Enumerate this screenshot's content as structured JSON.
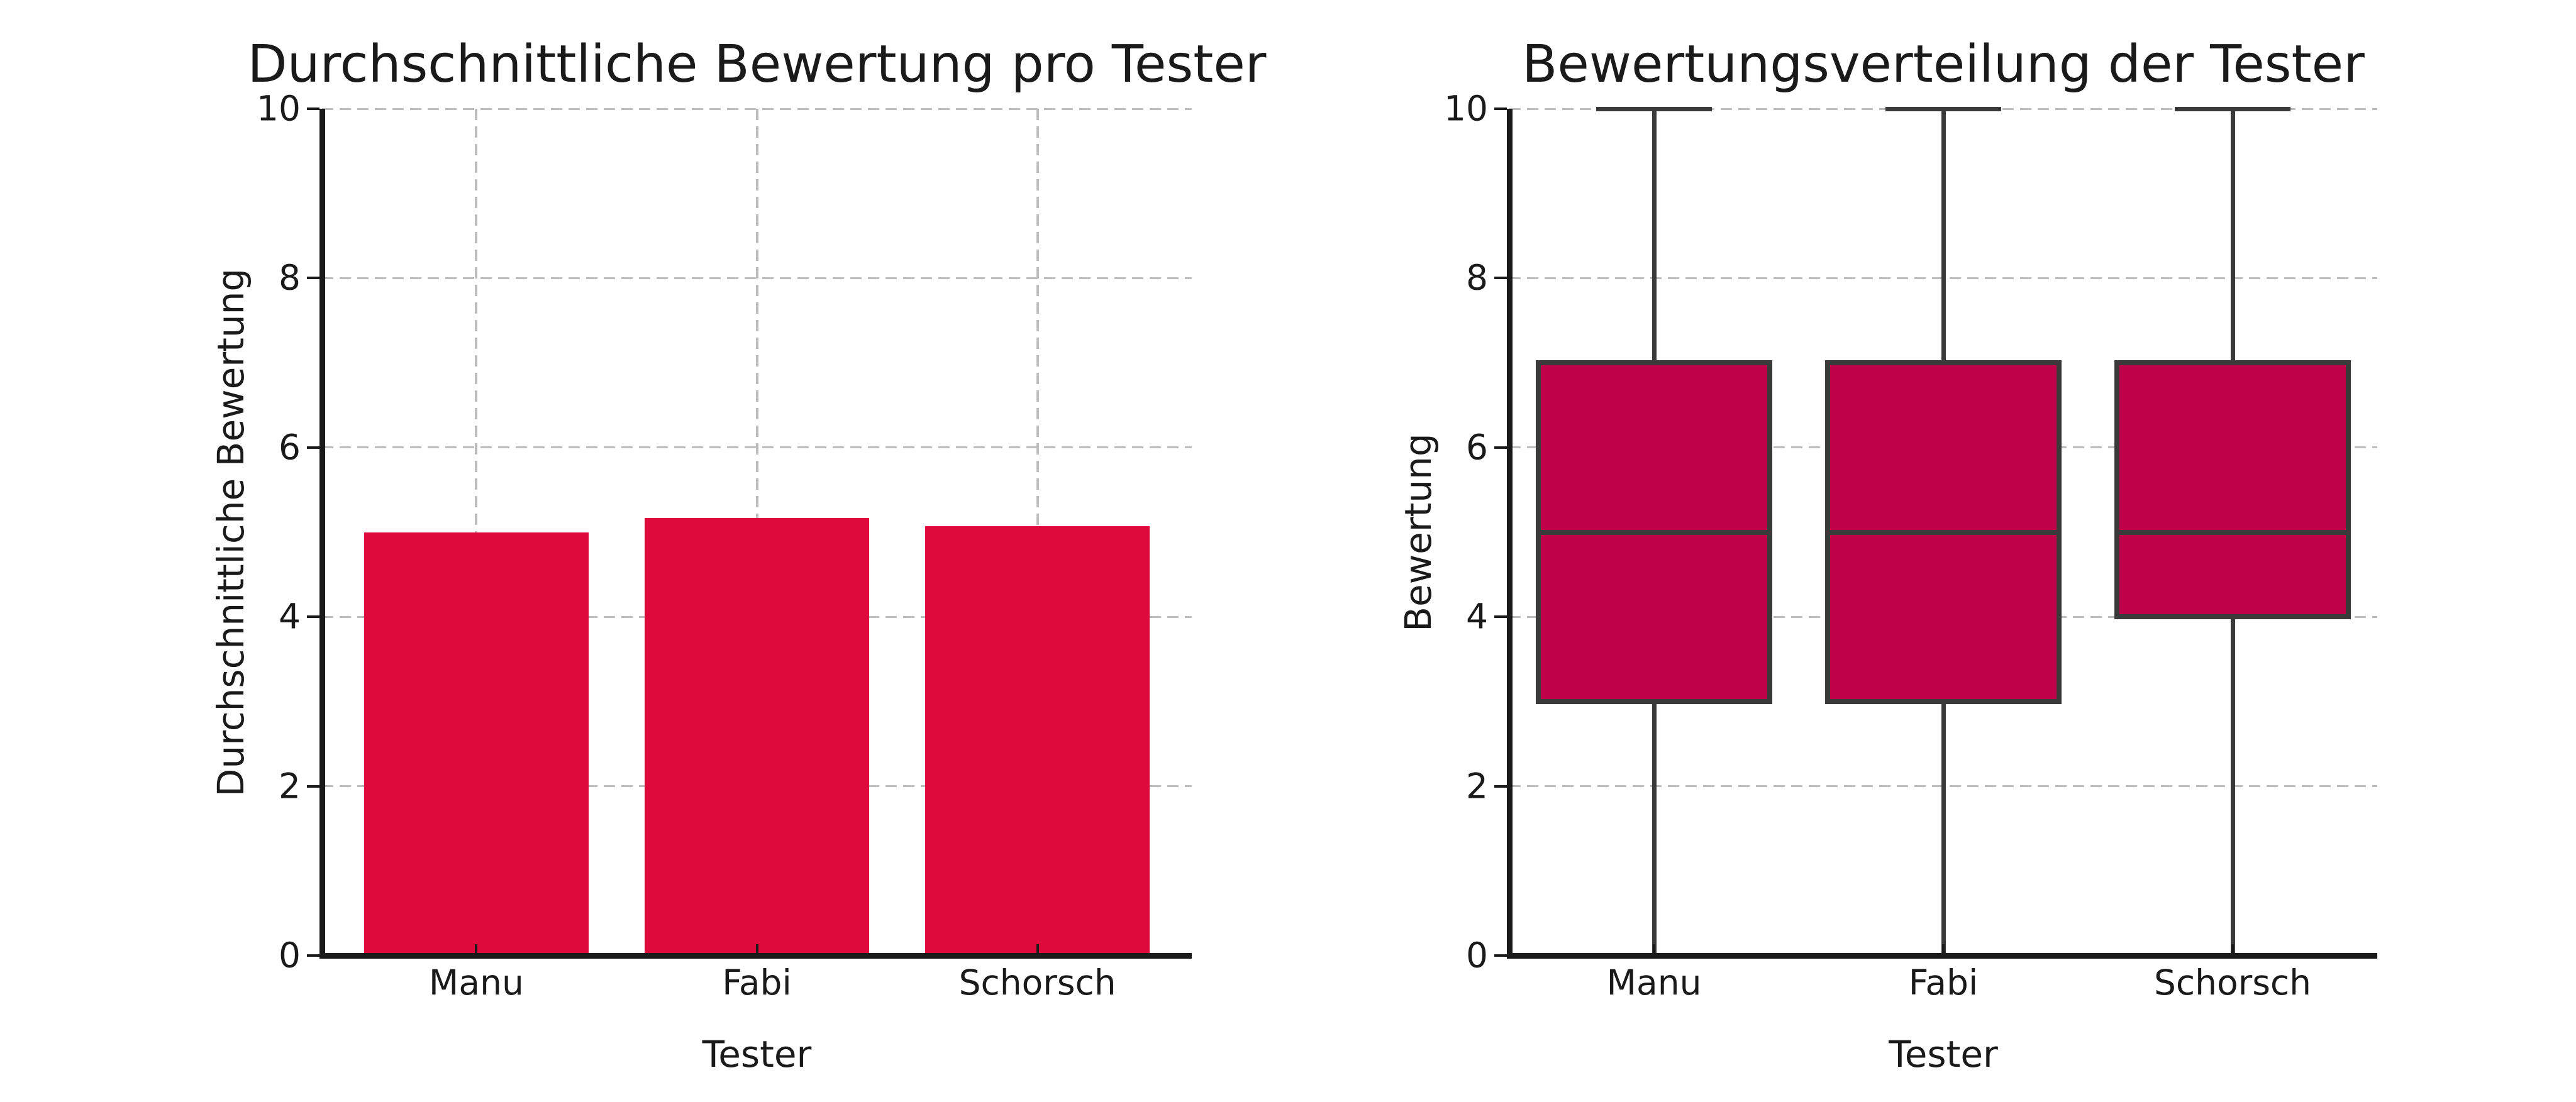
{
  "figure": {
    "background": "#ffffff",
    "text_color": "#1a1a1a",
    "grid_color": "#bdbdbd",
    "grid_style": "dashed"
  },
  "chart_data": [
    {
      "type": "bar",
      "title": "Durchschnittliche Bewertung pro Tester",
      "xlabel": "Tester",
      "ylabel": "Durchschnittliche Bewertung",
      "categories": [
        "Manu",
        "Fabi",
        "Schorsch"
      ],
      "values": [
        5.0,
        5.17,
        5.07
      ],
      "ylim": [
        0,
        10
      ],
      "yticks": [
        0,
        2,
        4,
        6,
        8,
        10
      ],
      "grid": "dashed, both axes, drawn above bars",
      "legend": "none",
      "bar_color": "#df0a3c",
      "axis_color": "#1a1a1a"
    },
    {
      "type": "boxplot",
      "title": "Bewertungsverteilung der Tester",
      "xlabel": "Tester",
      "ylabel": "Bewertung",
      "categories": [
        "Manu",
        "Fabi",
        "Schorsch"
      ],
      "series": [
        {
          "name": "Manu",
          "whislo": 0,
          "q1": 3,
          "med": 5,
          "q3": 7,
          "whishi": 10
        },
        {
          "name": "Fabi",
          "whislo": 0,
          "q1": 3,
          "med": 5,
          "q3": 7,
          "whishi": 10
        },
        {
          "name": "Schorsch",
          "whislo": 0,
          "q1": 4,
          "med": 5,
          "q3": 7,
          "whishi": 10
        }
      ],
      "ylim": [
        0,
        10
      ],
      "yticks": [
        0,
        2,
        4,
        6,
        8,
        10
      ],
      "grid": "dashed, horizontal, drawn above boxes",
      "legend": "none",
      "box_fill": "#c1004a",
      "box_edge": "#3a3a3a",
      "axis_color": "#1a1a1a"
    }
  ]
}
